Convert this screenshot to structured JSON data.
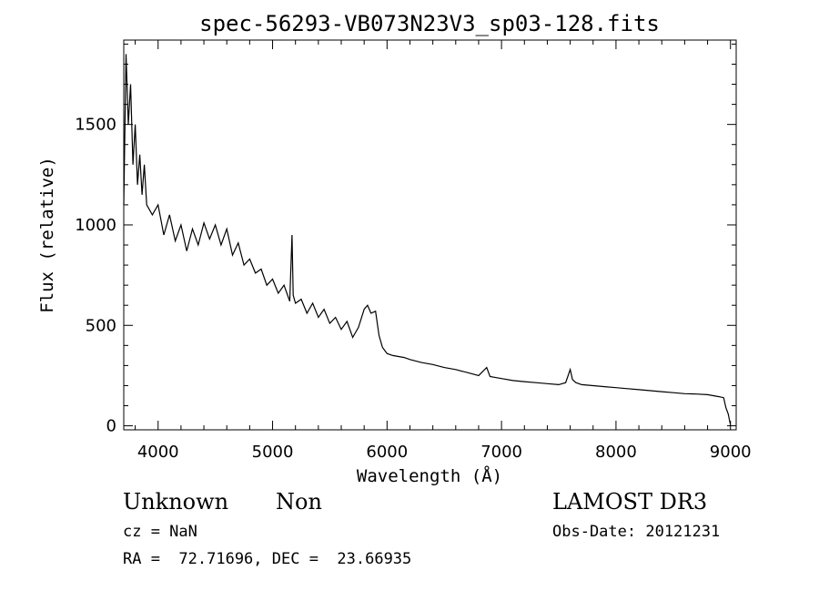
{
  "chart_data": {
    "type": "line",
    "title": "spec-56293-VB073N23V3_sp03-128.fits",
    "xlabel": "Wavelength (Å)",
    "ylabel": "Flux (relative)",
    "xlim": [
      3700,
      9050
    ],
    "ylim": [
      -20,
      1920
    ],
    "xticks": [
      4000,
      5000,
      6000,
      7000,
      8000,
      9000
    ],
    "yticks": [
      0,
      500,
      1000,
      1500
    ],
    "grid": false,
    "series": [
      {
        "x": [
          3700,
          3720,
          3740,
          3760,
          3780,
          3800,
          3820,
          3840,
          3860,
          3880,
          3900,
          3950,
          4000,
          4050,
          4100,
          4150,
          4200,
          4250,
          4300,
          4350,
          4400,
          4450,
          4500,
          4550,
          4600,
          4650,
          4700,
          4750,
          4800,
          4850,
          4900,
          4950,
          5000,
          5050,
          5100,
          5150,
          5170,
          5180,
          5200,
          5250,
          5300,
          5350,
          5400,
          5450,
          5500,
          5550,
          5600,
          5650,
          5700,
          5750,
          5800,
          5830,
          5860,
          5900,
          5930,
          5960,
          6000,
          6050,
          6100,
          6150,
          6200,
          6300,
          6400,
          6500,
          6600,
          6700,
          6800,
          6870,
          6900,
          7000,
          7100,
          7200,
          7300,
          7400,
          7500,
          7560,
          7600,
          7620,
          7650,
          7700,
          7800,
          7900,
          8000,
          8100,
          8200,
          8300,
          8400,
          8500,
          8600,
          8700,
          8800,
          8850,
          8900,
          8940,
          8960,
          8980,
          9000
        ],
        "y": [
          1100,
          1850,
          1500,
          1700,
          1300,
          1500,
          1200,
          1350,
          1150,
          1300,
          1100,
          1050,
          1100,
          950,
          1050,
          920,
          1000,
          870,
          980,
          900,
          1010,
          930,
          1000,
          900,
          980,
          850,
          910,
          800,
          830,
          760,
          780,
          700,
          730,
          660,
          700,
          620,
          950,
          650,
          610,
          630,
          560,
          610,
          540,
          580,
          510,
          540,
          480,
          520,
          440,
          490,
          580,
          600,
          560,
          570,
          450,
          390,
          360,
          350,
          345,
          340,
          330,
          315,
          305,
          290,
          280,
          265,
          250,
          290,
          245,
          235,
          225,
          220,
          215,
          210,
          205,
          215,
          280,
          230,
          215,
          205,
          200,
          195,
          190,
          185,
          180,
          175,
          170,
          165,
          160,
          158,
          155,
          150,
          145,
          140,
          90,
          60,
          5
        ]
      }
    ]
  },
  "info": {
    "object_class": "Unknown",
    "subclass": "Non",
    "cz": "cz = NaN",
    "coords": "RA =  72.71696, DEC =  23.66935",
    "survey": "LAMOST DR3",
    "obs_date": "Obs-Date: 20121231"
  }
}
